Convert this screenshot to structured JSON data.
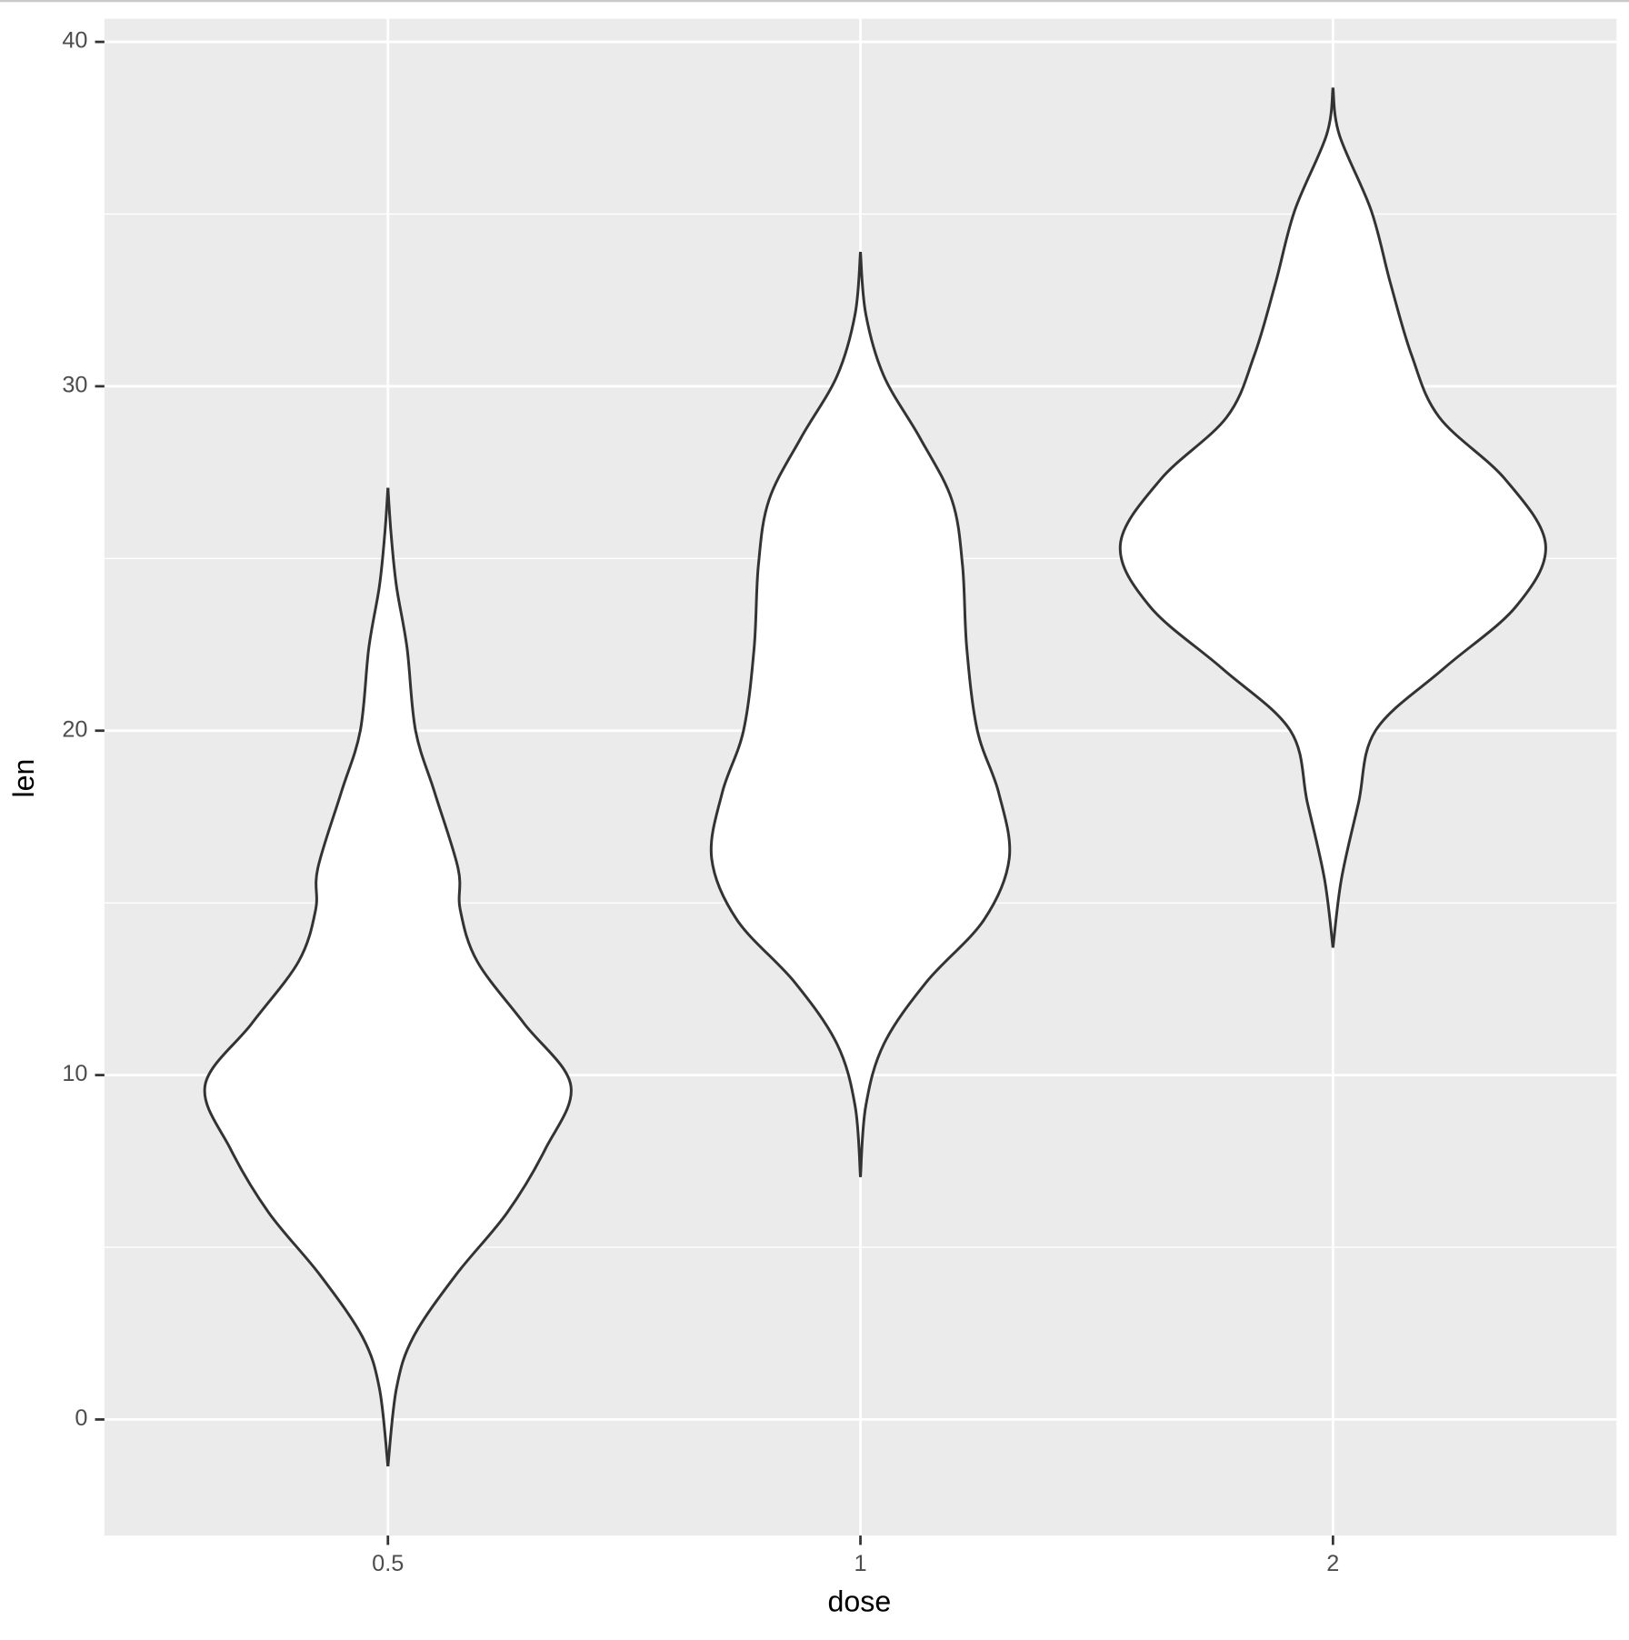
{
  "chart_data": {
    "type": "violin",
    "x_label": "dose",
    "y_label": "len",
    "categories": [
      "0.5",
      "1",
      "2"
    ],
    "violins": [
      {
        "y": [
          27.05,
          25.7,
          24.2,
          22.4,
          20.0,
          18.2,
          16.0,
          14.8,
          13.3,
          11.5,
          9.7,
          7.85,
          6.0,
          4.2,
          2.4,
          0.9,
          -1.36
        ],
        "density": [
          0,
          0.015,
          0.04,
          0.09,
          0.13,
          0.22,
          0.33,
          0.34,
          0.42,
          0.64,
          0.86,
          0.74,
          0.56,
          0.32,
          0.12,
          0.04,
          0
        ]
      },
      {
        "y": [
          33.9,
          32.1,
          30.3,
          28.5,
          26.7,
          24.8,
          22.4,
          20.0,
          18.2,
          16.3,
          14.5,
          12.7,
          10.9,
          9.1,
          7.04
        ],
        "density": [
          0,
          0.025,
          0.11,
          0.28,
          0.43,
          0.48,
          0.5,
          0.55,
          0.65,
          0.7,
          0.58,
          0.31,
          0.11,
          0.025,
          0
        ]
      },
      {
        "y": [
          38.67,
          37.3,
          35.1,
          33.0,
          30.9,
          29.1,
          27.3,
          25.4,
          23.6,
          21.8,
          20.0,
          17.9,
          15.7,
          13.7
        ],
        "density": [
          0,
          0.03,
          0.18,
          0.27,
          0.37,
          0.5,
          0.81,
          1.0,
          0.86,
          0.52,
          0.2,
          0.12,
          0.04,
          0
        ]
      }
    ],
    "fill": "#ffffff",
    "outline_color": "#333333",
    "ylim": [
      -3.37,
      40.67
    ],
    "yticks": [
      0,
      10,
      20,
      30,
      40
    ],
    "minor_yticks": [
      5,
      15,
      25,
      35
    ],
    "grid": true,
    "panel_color": "#ebebeb"
  }
}
